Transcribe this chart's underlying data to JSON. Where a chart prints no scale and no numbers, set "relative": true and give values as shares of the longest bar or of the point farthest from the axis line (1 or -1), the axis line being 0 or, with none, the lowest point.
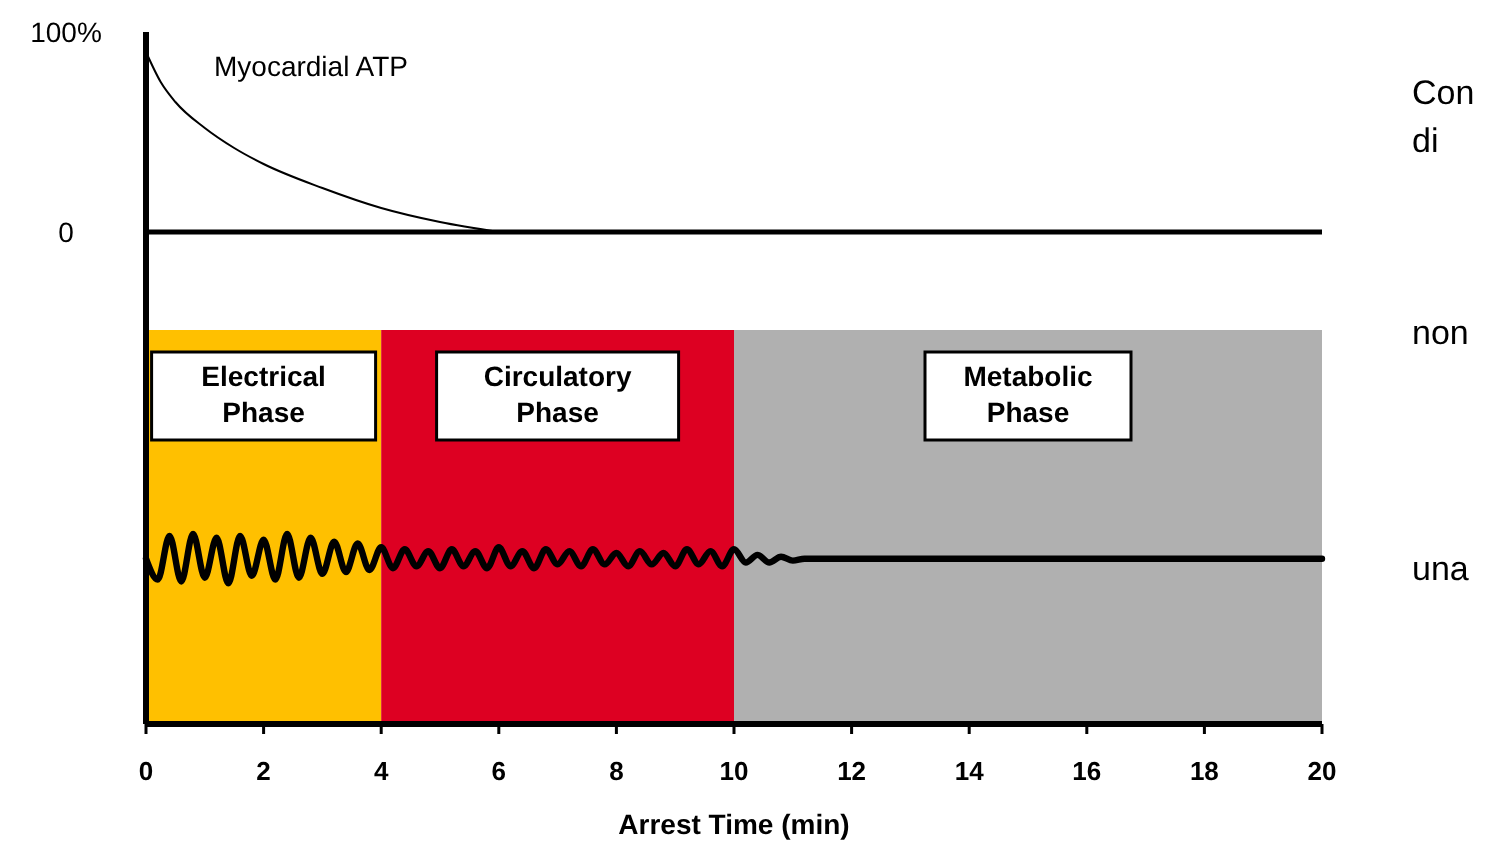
{
  "chart_data": [
    {
      "type": "line",
      "xlim": [
        0,
        20
      ],
      "ylim": [
        0,
        100
      ],
      "yticks": [
        0,
        {
          "value": 100,
          "label": "100%"
        }
      ],
      "tick_labels": "y",
      "annotations": [
        "Con\ndi"
      ],
      "series": [
        {
          "name": "Myocardial ATP",
          "color": "#000000",
          "x": [
            0,
            0.25,
            0.5,
            1,
            1.5,
            2,
            3,
            4,
            5,
            6
          ],
          "values": [
            90,
            75,
            65,
            52,
            42,
            34,
            22,
            12,
            5,
            0
          ]
        }
      ]
    },
    {
      "type": "line",
      "relative": true,
      "xlim": [
        0,
        20
      ],
      "xticks": [
        0,
        2,
        4,
        6,
        8,
        10,
        12,
        14,
        16,
        18,
        20
      ],
      "xlabel": "Arrest Time (min)",
      "tick_labels": "x",
      "annotations": [
        "non",
        "una"
      ],
      "bands": [
        {
          "axis": "x",
          "from": 0,
          "to": 4,
          "label": "Electrical Phase",
          "color": "#ffc000"
        },
        {
          "axis": "x",
          "from": 4,
          "to": 10,
          "label": "Circulatory Phase",
          "color": "#dd0022"
        },
        {
          "axis": "x",
          "from": 10,
          "to": 20,
          "label": "Metabolic Phase",
          "color": "#b0b0b0"
        }
      ],
      "series": [
        {
          "color": "#000000",
          "x": [
            0,
            0.2,
            0.4,
            0.6,
            0.8,
            1,
            1.2,
            1.4,
            1.6,
            1.8,
            2,
            2.2,
            2.4,
            2.6,
            2.8,
            3,
            3.2,
            3.4,
            3.6,
            3.8,
            4,
            4.2,
            4.4,
            4.6,
            4.8,
            5,
            5.2,
            5.4,
            5.6,
            5.8,
            6,
            6.2,
            6.4,
            6.6,
            6.8,
            7,
            7.2,
            7.4,
            7.6,
            7.8,
            8,
            8.2,
            8.4,
            8.6,
            8.8,
            9,
            9.2,
            9.4,
            9.6,
            9.8,
            10,
            10.2,
            10.4,
            10.6,
            10.8,
            11,
            11.2,
            12,
            20
          ],
          "values": [
            0.87,
            0.76,
            0.99,
            0.75,
            1.0,
            0.77,
            0.98,
            0.74,
            0.99,
            0.78,
            0.97,
            0.76,
            1.0,
            0.77,
            0.98,
            0.79,
            0.96,
            0.8,
            0.95,
            0.81,
            0.93,
            0.82,
            0.92,
            0.83,
            0.91,
            0.82,
            0.92,
            0.83,
            0.91,
            0.82,
            0.93,
            0.83,
            0.91,
            0.82,
            0.92,
            0.84,
            0.91,
            0.83,
            0.92,
            0.84,
            0.9,
            0.83,
            0.91,
            0.84,
            0.9,
            0.83,
            0.92,
            0.84,
            0.91,
            0.83,
            0.92,
            0.85,
            0.89,
            0.85,
            0.88,
            0.86,
            0.87,
            0.87,
            0.87
          ]
        }
      ]
    }
  ]
}
